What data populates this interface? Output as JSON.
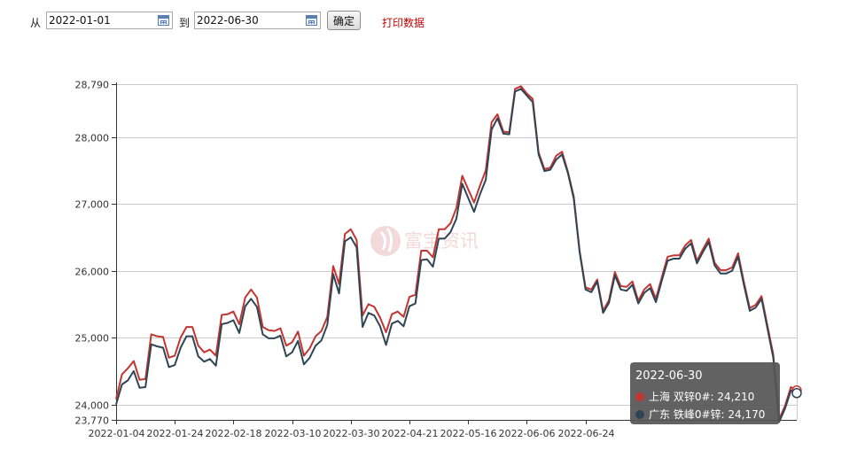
{
  "toolbar": {
    "from_label": "从",
    "start_date": "2022-01-01",
    "to_label": "到",
    "end_date": "2022-06-30",
    "confirm_label": "确定",
    "print_label": "打印数据"
  },
  "watermark": "富宝资讯",
  "tooltip": {
    "date": "2022-06-30",
    "rows": [
      {
        "label": "上海 双锌0#: 24,210",
        "color": "#c23531"
      },
      {
        "label": "广东 铁峰0#锌: 24,170",
        "color": "#2f4554"
      }
    ]
  },
  "chart_data": {
    "type": "line",
    "y_ticks": [
      "28,790",
      "28,000",
      "27,000",
      "26,000",
      "25,000",
      "24,000",
      "23,770"
    ],
    "y_tick_values": [
      28790,
      28000,
      27000,
      26000,
      25000,
      24000,
      23770
    ],
    "ylim": [
      23770,
      28790
    ],
    "x_ticks": [
      "2022-01-04",
      "2022-01-24",
      "2022-02-18",
      "2022-03-10",
      "2022-03-30",
      "2022-04-21",
      "2022-05-16",
      "2022-06-06",
      "2022-06-24"
    ],
    "x_tick_index": [
      0,
      10,
      20,
      30,
      40,
      50,
      60,
      70,
      80
    ],
    "grid": true,
    "series": [
      {
        "name": "上海 双锌0#",
        "color": "#c23531",
        "values": [
          24080,
          24450,
          24540,
          24650,
          24370,
          24380,
          25050,
          25020,
          25010,
          24700,
          24730,
          25000,
          25160,
          25160,
          24880,
          24780,
          24820,
          24730,
          25340,
          25350,
          25390,
          25200,
          25600,
          25720,
          25600,
          25160,
          25110,
          25100,
          25140,
          24880,
          24930,
          25090,
          24730,
          24840,
          25020,
          25100,
          25310,
          26070,
          25800,
          26550,
          26620,
          26460,
          25330,
          25500,
          25460,
          25300,
          25080,
          25350,
          25390,
          25310,
          25610,
          25640,
          26300,
          26300,
          26200,
          26620,
          26620,
          26710,
          26940,
          27420,
          27220,
          27020,
          27270,
          27500,
          28220,
          28340,
          28080,
          28070,
          28720,
          28760,
          28650,
          28570,
          27770,
          27520,
          27540,
          27720,
          27780,
          27480,
          27110,
          26300,
          25750,
          25720,
          25870,
          25400,
          25560,
          25980,
          25770,
          25760,
          25840,
          25550,
          25720,
          25800,
          25580,
          25900,
          26210,
          26230,
          26230,
          26380,
          26460,
          26150,
          26320,
          26480,
          26120,
          26010,
          26010,
          26050,
          26260,
          25830,
          25440,
          25490,
          25620,
          25180,
          24750,
          23780,
          23980,
          24260,
          24210
        ],
        "latest": "24,210"
      },
      {
        "name": "广东 铁峰0#锌",
        "color": "#2f4554",
        "values": [
          24000,
          24300,
          24360,
          24500,
          24250,
          24260,
          24900,
          24870,
          24850,
          24560,
          24590,
          24850,
          25020,
          25020,
          24720,
          24640,
          24680,
          24580,
          25200,
          25220,
          25260,
          25070,
          25470,
          25580,
          25460,
          25050,
          24990,
          24990,
          25030,
          24720,
          24780,
          24950,
          24600,
          24700,
          24880,
          24960,
          25190,
          25950,
          25660,
          26440,
          26500,
          26350,
          25160,
          25370,
          25330,
          25170,
          24890,
          25210,
          25250,
          25170,
          25470,
          25510,
          26160,
          26170,
          26060,
          26480,
          26480,
          26580,
          26780,
          27300,
          27090,
          26880,
          27140,
          27360,
          28110,
          28280,
          28050,
          28040,
          28680,
          28720,
          28620,
          28520,
          27740,
          27490,
          27510,
          27660,
          27740,
          27460,
          27080,
          26280,
          25720,
          25680,
          25840,
          25370,
          25520,
          25930,
          25720,
          25700,
          25790,
          25510,
          25670,
          25740,
          25530,
          25850,
          26150,
          26180,
          26180,
          26330,
          26410,
          26110,
          26280,
          26430,
          26080,
          25960,
          25960,
          26000,
          26210,
          25790,
          25400,
          25450,
          25580,
          25140,
          24700,
          23740,
          23940,
          24210,
          24170
        ],
        "latest": "24,170"
      }
    ]
  }
}
